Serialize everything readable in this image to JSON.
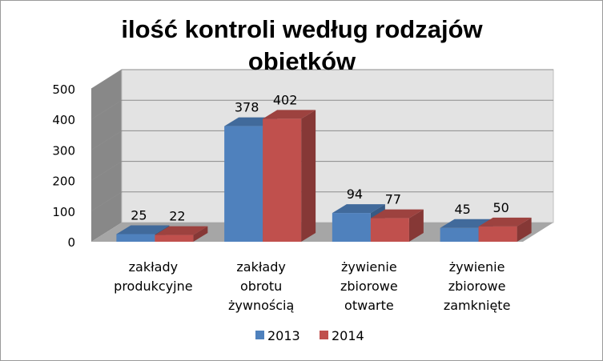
{
  "chart_data": {
    "type": "bar",
    "title": "ilość kontroli według rodzajów obietków",
    "title_lines": [
      "ilość kontroli według rodzajów",
      "obietków"
    ],
    "categories": [
      [
        "zakłady",
        "produkcyjne"
      ],
      [
        "zakłady",
        "obrotu",
        "żywnością"
      ],
      [
        "żywienie",
        "zbiorowe",
        "otwarte"
      ],
      [
        "żywienie",
        "zbiorowe",
        "zamknięte"
      ]
    ],
    "series": [
      {
        "name": "2013",
        "values": [
          25,
          378,
          94,
          45
        ],
        "color": "#4F81BD"
      },
      {
        "name": "2014",
        "values": [
          22,
          402,
          77,
          50
        ],
        "color": "#C0504D"
      }
    ],
    "ylim": [
      0,
      500
    ],
    "yticks": [
      "0",
      "100",
      "200",
      "300",
      "400",
      "500"
    ],
    "grid": true,
    "legend_position": "bottom",
    "style": "3d-clustered-column"
  }
}
